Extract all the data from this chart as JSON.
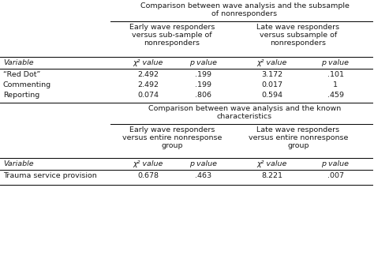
{
  "title1_line1": "Comparison between wave analysis and the subsample",
  "title1_line2": "of nonresponders",
  "title2_line1": "Comparison between wave analysis and the known",
  "title2_line2": "characteristics",
  "col_header1": [
    "Early wave responders",
    "versus sub-sample of",
    "nonresponders"
  ],
  "col_header2": [
    "Late wave responders",
    "versus subsample of",
    "nonresponders"
  ],
  "col_header3": [
    "Early wave responders",
    "versus entire nonresponse",
    "group"
  ],
  "col_header4": [
    "Late wave responders",
    "versus entire nonresponse",
    "group"
  ],
  "variable_label": "Variable",
  "chi2_label": "χ² value",
  "p_label": "p value",
  "section1_rows": [
    [
      "“Red Dot”",
      "2.492",
      ".199",
      "3.172",
      ".101"
    ],
    [
      "Commenting",
      "2.492",
      ".199",
      "0.017",
      "1"
    ],
    [
      "Reporting",
      "0.074",
      ".806",
      "0.594",
      ".459"
    ]
  ],
  "section2_rows": [
    [
      "Trauma service provision",
      "0.678",
      ".463",
      "8.221",
      ".007"
    ]
  ],
  "bg_color": "#ffffff",
  "text_color": "#1a1a1a",
  "font_size": 6.8,
  "line_color": "#000000"
}
